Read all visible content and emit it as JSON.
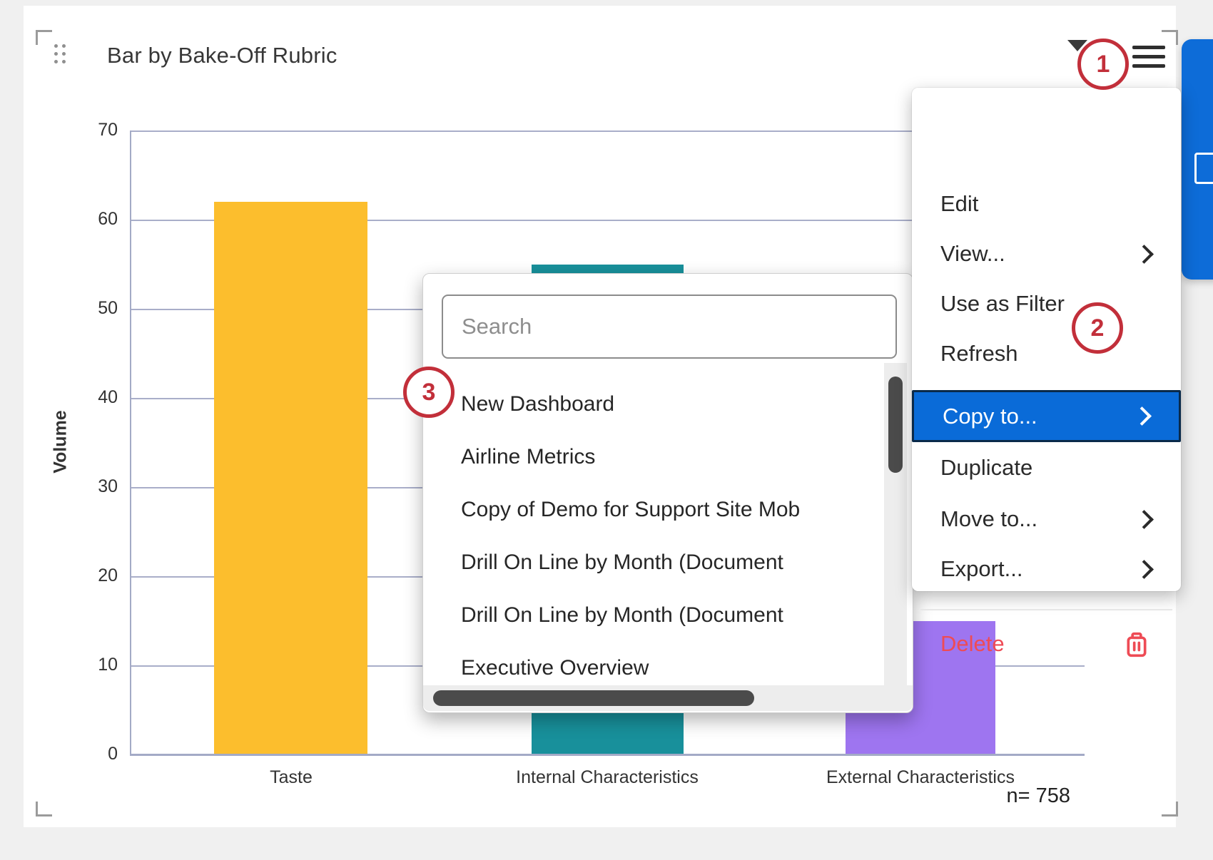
{
  "widget": {
    "title": "Bar by Bake-Off Rubric",
    "sample_label": "n= 758"
  },
  "chart_data": {
    "type": "bar",
    "title": "Bar by Bake-Off Rubric",
    "categories": [
      "Taste",
      "Internal Characteristics",
      "External Characteristics"
    ],
    "values": [
      62,
      55,
      15
    ],
    "bar_colors": [
      "#fcbe2d",
      "#18909b",
      "#9e75f0"
    ],
    "xlabel": "",
    "ylabel": "Volume",
    "ylim": [
      0,
      70
    ],
    "ytick_step": 10,
    "grid": true,
    "legend": "none",
    "sample_size_label": "n= 758"
  },
  "context_menu": {
    "items": [
      {
        "label": "Edit",
        "submenu": false,
        "active": false,
        "danger": false
      },
      {
        "label": "View...",
        "submenu": true,
        "active": false,
        "danger": false
      },
      {
        "label": "Use as Filter",
        "submenu": false,
        "active": false,
        "danger": false
      },
      {
        "label": "Refresh",
        "submenu": false,
        "active": false,
        "danger": false
      },
      {
        "label": "Copy to...",
        "submenu": true,
        "active": true,
        "danger": false
      },
      {
        "label": "Duplicate",
        "submenu": false,
        "active": false,
        "danger": false
      },
      {
        "label": "Move to...",
        "submenu": true,
        "active": false,
        "danger": false
      },
      {
        "label": "Export...",
        "submenu": true,
        "active": false,
        "danger": false
      },
      {
        "label": "Delete",
        "submenu": false,
        "active": false,
        "danger": true,
        "icon": "trash-icon"
      }
    ],
    "highlight_color": "#0a6bd8",
    "highlight_border_color": "#0a2a4a",
    "danger_color": "#ee4b55"
  },
  "copy_submenu": {
    "search_placeholder": "Search",
    "items": [
      "New Dashboard",
      "Airline Metrics",
      "Copy of Demo for Support Site Mob",
      "Drill On Line by Month (Document",
      "Drill On Line by Month (Document",
      "Executive Overview"
    ]
  },
  "annotations": {
    "color": "#c22f3a",
    "callouts": [
      {
        "number": "1",
        "target": "options-menu-button"
      },
      {
        "number": "2",
        "target": "menu-item-copy-to"
      },
      {
        "number": "3",
        "target": "submenu-item-new-dashboard"
      }
    ]
  },
  "side_panel": {
    "color": "#0d6cd8"
  }
}
